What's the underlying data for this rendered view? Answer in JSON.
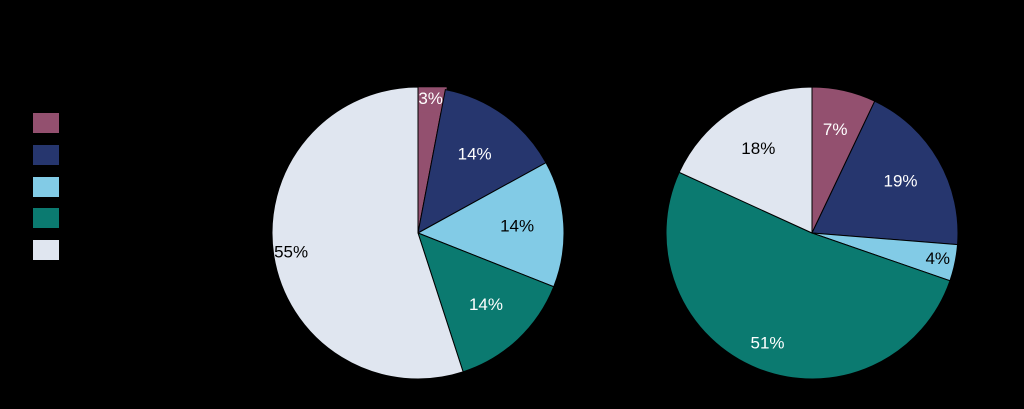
{
  "chart_data": [
    {
      "type": "pie",
      "categories": [
        "",
        "",
        "",
        "",
        ""
      ],
      "values": [
        3,
        14,
        14,
        14,
        55
      ],
      "labels": [
        "3%",
        "14%",
        "14%",
        "14%",
        "55%"
      ],
      "colors": [
        "#93506f",
        "#26366e",
        "#82cbe6",
        "#0b7a70",
        "#e0e6f0"
      ]
    },
    {
      "type": "pie",
      "categories": [
        "",
        "",
        "",
        "",
        ""
      ],
      "values": [
        7,
        19,
        4,
        51,
        18
      ],
      "labels": [
        "7%",
        "19%",
        "4%",
        "51%",
        "18%"
      ],
      "colors": [
        "#93506f",
        "#26366e",
        "#82cbe6",
        "#0b7a70",
        "#e0e6f0"
      ]
    }
  ],
  "legend": {
    "placement": "left",
    "colors": [
      "#93506f",
      "#26366e",
      "#82cbe6",
      "#0b7a70",
      "#e0e6f0"
    ]
  },
  "label_colors": {
    "on_dark": "#ffffff",
    "on_light": "#000000"
  }
}
